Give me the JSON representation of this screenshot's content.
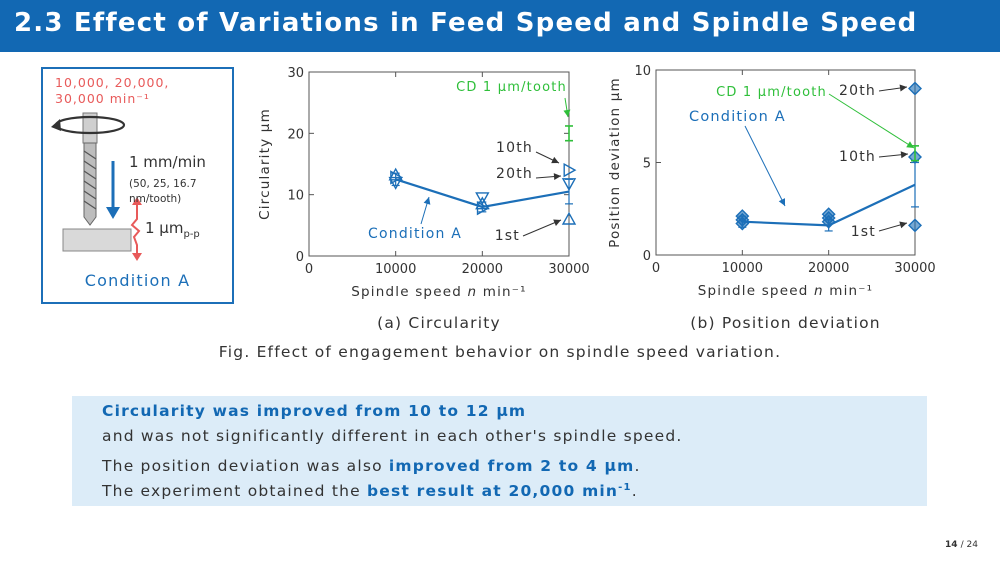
{
  "header": {
    "title": "2.3 Effect of Variations in Feed Speed and Spindle Speed"
  },
  "tool_panel": {
    "speeds": "10,000, 20,000,\n30,000 min⁻¹",
    "feed": "1 mm/min",
    "feed_detail": "(50, 25, 16.7\n   nm/tooth)",
    "roughness_value": "1 μm",
    "roughness_sub": "p-p",
    "condition": "Condition A"
  },
  "colors": {
    "accent": "#1268b3",
    "series": "#1c6fb8",
    "cd": "#2fbf3a",
    "speed_text": "#e85a5a",
    "summary_bg": "#dcecf8"
  },
  "chart_data": [
    {
      "type": "line",
      "caption": "(a) Circularity",
      "xlabel_text": "Spindle speed ",
      "xlabel_var": "n",
      "xlabel_unit": " min⁻¹",
      "ylabel": "Circularity μm",
      "xlim": [
        0,
        30000
      ],
      "ylim": [
        0,
        30
      ],
      "xticks": [
        0,
        10000,
        20000,
        30000
      ],
      "xtick_labels": [
        "0",
        "10000",
        "20000",
        "30000"
      ],
      "yticks": [
        0,
        10,
        20,
        30
      ],
      "ytick_labels": [
        "0",
        "10",
        "20",
        "30"
      ],
      "series": [
        {
          "name": "Condition A",
          "x": [
            10000,
            20000,
            30000
          ],
          "y": [
            12.5,
            8.0,
            10.5
          ],
          "err_low": [
            1.0,
            0.8,
            2.0
          ],
          "err_high": [
            1.0,
            0.8,
            2.0
          ]
        }
      ],
      "markers": {
        "1st": [
          [
            10000,
            13.2
          ],
          [
            20000,
            8.5
          ],
          [
            30000,
            6.0
          ]
        ],
        "10th": [
          [
            10000,
            12.8
          ],
          [
            20000,
            7.8
          ],
          [
            30000,
            14.0
          ]
        ],
        "20th": [
          [
            10000,
            12.0
          ],
          [
            20000,
            9.5
          ],
          [
            30000,
            11.8
          ]
        ]
      },
      "cd_point": {
        "x": 30000,
        "y": 20.0,
        "err": 1.2,
        "label": "CD 1 μm/tooth"
      },
      "annotations": [
        "10th",
        "20th",
        "1st",
        "Condition A"
      ]
    },
    {
      "type": "line",
      "caption": "(b) Position deviation",
      "xlabel_text": "Spindle speed ",
      "xlabel_var": "n",
      "xlabel_unit": " min⁻¹",
      "ylabel": "Position deviation μm",
      "xlim": [
        0,
        30000
      ],
      "ylim": [
        0,
        10
      ],
      "xticks": [
        0,
        10000,
        20000,
        30000
      ],
      "xtick_labels": [
        "0",
        "10000",
        "20000",
        "30000"
      ],
      "yticks": [
        0,
        5,
        10
      ],
      "ytick_labels": [
        "0",
        "5",
        "10"
      ],
      "series": [
        {
          "name": "Condition A",
          "x": [
            10000,
            20000,
            30000
          ],
          "y": [
            1.8,
            1.6,
            3.8
          ],
          "err_low": [
            0.3,
            0.3,
            1.2
          ],
          "err_high": [
            0.3,
            0.3,
            1.2
          ]
        }
      ],
      "markers": {
        "1st": [
          [
            10000,
            1.7
          ],
          [
            20000,
            1.8
          ],
          [
            30000,
            1.6
          ]
        ],
        "10th": [
          [
            10000,
            1.9
          ],
          [
            20000,
            2.0
          ],
          [
            30000,
            5.3
          ]
        ],
        "20th": [
          [
            10000,
            2.1
          ],
          [
            20000,
            2.2
          ],
          [
            30000,
            9.0
          ]
        ]
      },
      "cd_point": {
        "x": 30000,
        "y": 5.5,
        "err": 0.4,
        "label": "CD 1 μm/tooth"
      },
      "annotations": [
        "20th",
        "10th",
        "1st",
        "Condition A"
      ]
    }
  ],
  "figure": {
    "caption": "Fig. Effect of engagement behavior on spindle speed variation."
  },
  "summary": {
    "line1_bold": "Circularity was improved from 10 to 12 μm",
    "line2": "and was not significantly different in each other's spindle speed.",
    "line3_pre": "The position deviation was also ",
    "line3_bold": "improved from 2 to 4 μm",
    "line3_post": ".",
    "line4_pre": "The experiment obtained the ",
    "line4_bold": "best result at 20,000 min",
    "line4_sup": "-1",
    "line4_post": "."
  },
  "page": {
    "current": "14",
    "total": "/ 24"
  }
}
